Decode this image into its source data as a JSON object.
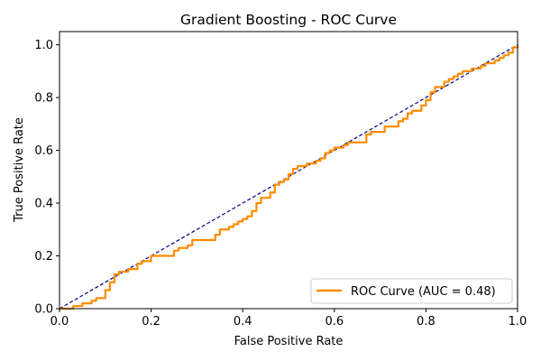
{
  "chart_data": {
    "type": "line",
    "title": "Gradient Boosting - ROC Curve",
    "xlabel": "False Positive Rate",
    "ylabel": "True Positive Rate",
    "xlim": [
      0.0,
      1.0
    ],
    "ylim": [
      0.0,
      1.05
    ],
    "xticks": [
      0.0,
      0.2,
      0.4,
      0.6,
      0.8,
      1.0
    ],
    "yticks": [
      0.0,
      0.2,
      0.4,
      0.6,
      0.8,
      1.0
    ],
    "xtick_labels": [
      "0.0",
      "0.2",
      "0.4",
      "0.6",
      "0.8",
      "1.0"
    ],
    "ytick_labels": [
      "0.0",
      "0.2",
      "0.4",
      "0.6",
      "0.8",
      "1.0"
    ],
    "grid": false,
    "legend_position": "lower-right",
    "series": [
      {
        "name": "ROC Curve (AUC = 0.48)",
        "color": "#ff8c00",
        "style": "solid",
        "x": [
          0.0,
          0.02,
          0.03,
          0.04,
          0.05,
          0.07,
          0.08,
          0.09,
          0.1,
          0.11,
          0.12,
          0.13,
          0.15,
          0.17,
          0.18,
          0.2,
          0.22,
          0.25,
          0.26,
          0.28,
          0.29,
          0.3,
          0.34,
          0.35,
          0.37,
          0.38,
          0.39,
          0.4,
          0.41,
          0.42,
          0.43,
          0.44,
          0.46,
          0.47,
          0.48,
          0.49,
          0.5,
          0.51,
          0.52,
          0.53,
          0.54,
          0.56,
          0.57,
          0.58,
          0.59,
          0.6,
          0.62,
          0.63,
          0.64,
          0.66,
          0.67,
          0.68,
          0.7,
          0.71,
          0.74,
          0.75,
          0.76,
          0.77,
          0.79,
          0.8,
          0.81,
          0.82,
          0.83,
          0.84,
          0.85,
          0.86,
          0.87,
          0.88,
          0.9,
          0.92,
          0.93,
          0.95,
          0.96,
          0.97,
          0.98,
          0.99,
          1.0
        ],
        "y": [
          0.0,
          0.0,
          0.01,
          0.01,
          0.02,
          0.03,
          0.04,
          0.04,
          0.07,
          0.1,
          0.13,
          0.14,
          0.15,
          0.17,
          0.18,
          0.2,
          0.2,
          0.22,
          0.23,
          0.24,
          0.26,
          0.26,
          0.28,
          0.3,
          0.31,
          0.32,
          0.33,
          0.34,
          0.35,
          0.37,
          0.4,
          0.42,
          0.44,
          0.47,
          0.48,
          0.49,
          0.51,
          0.53,
          0.54,
          0.54,
          0.55,
          0.56,
          0.57,
          0.59,
          0.6,
          0.61,
          0.62,
          0.63,
          0.63,
          0.63,
          0.66,
          0.67,
          0.67,
          0.69,
          0.71,
          0.72,
          0.74,
          0.75,
          0.77,
          0.79,
          0.82,
          0.84,
          0.84,
          0.86,
          0.87,
          0.88,
          0.89,
          0.9,
          0.91,
          0.92,
          0.93,
          0.94,
          0.95,
          0.96,
          0.97,
          0.99,
          1.0
        ]
      },
      {
        "name": "",
        "color": "#000080",
        "style": "dashed",
        "x": [
          0.0,
          1.0
        ],
        "y": [
          0.0,
          1.0
        ]
      }
    ]
  }
}
